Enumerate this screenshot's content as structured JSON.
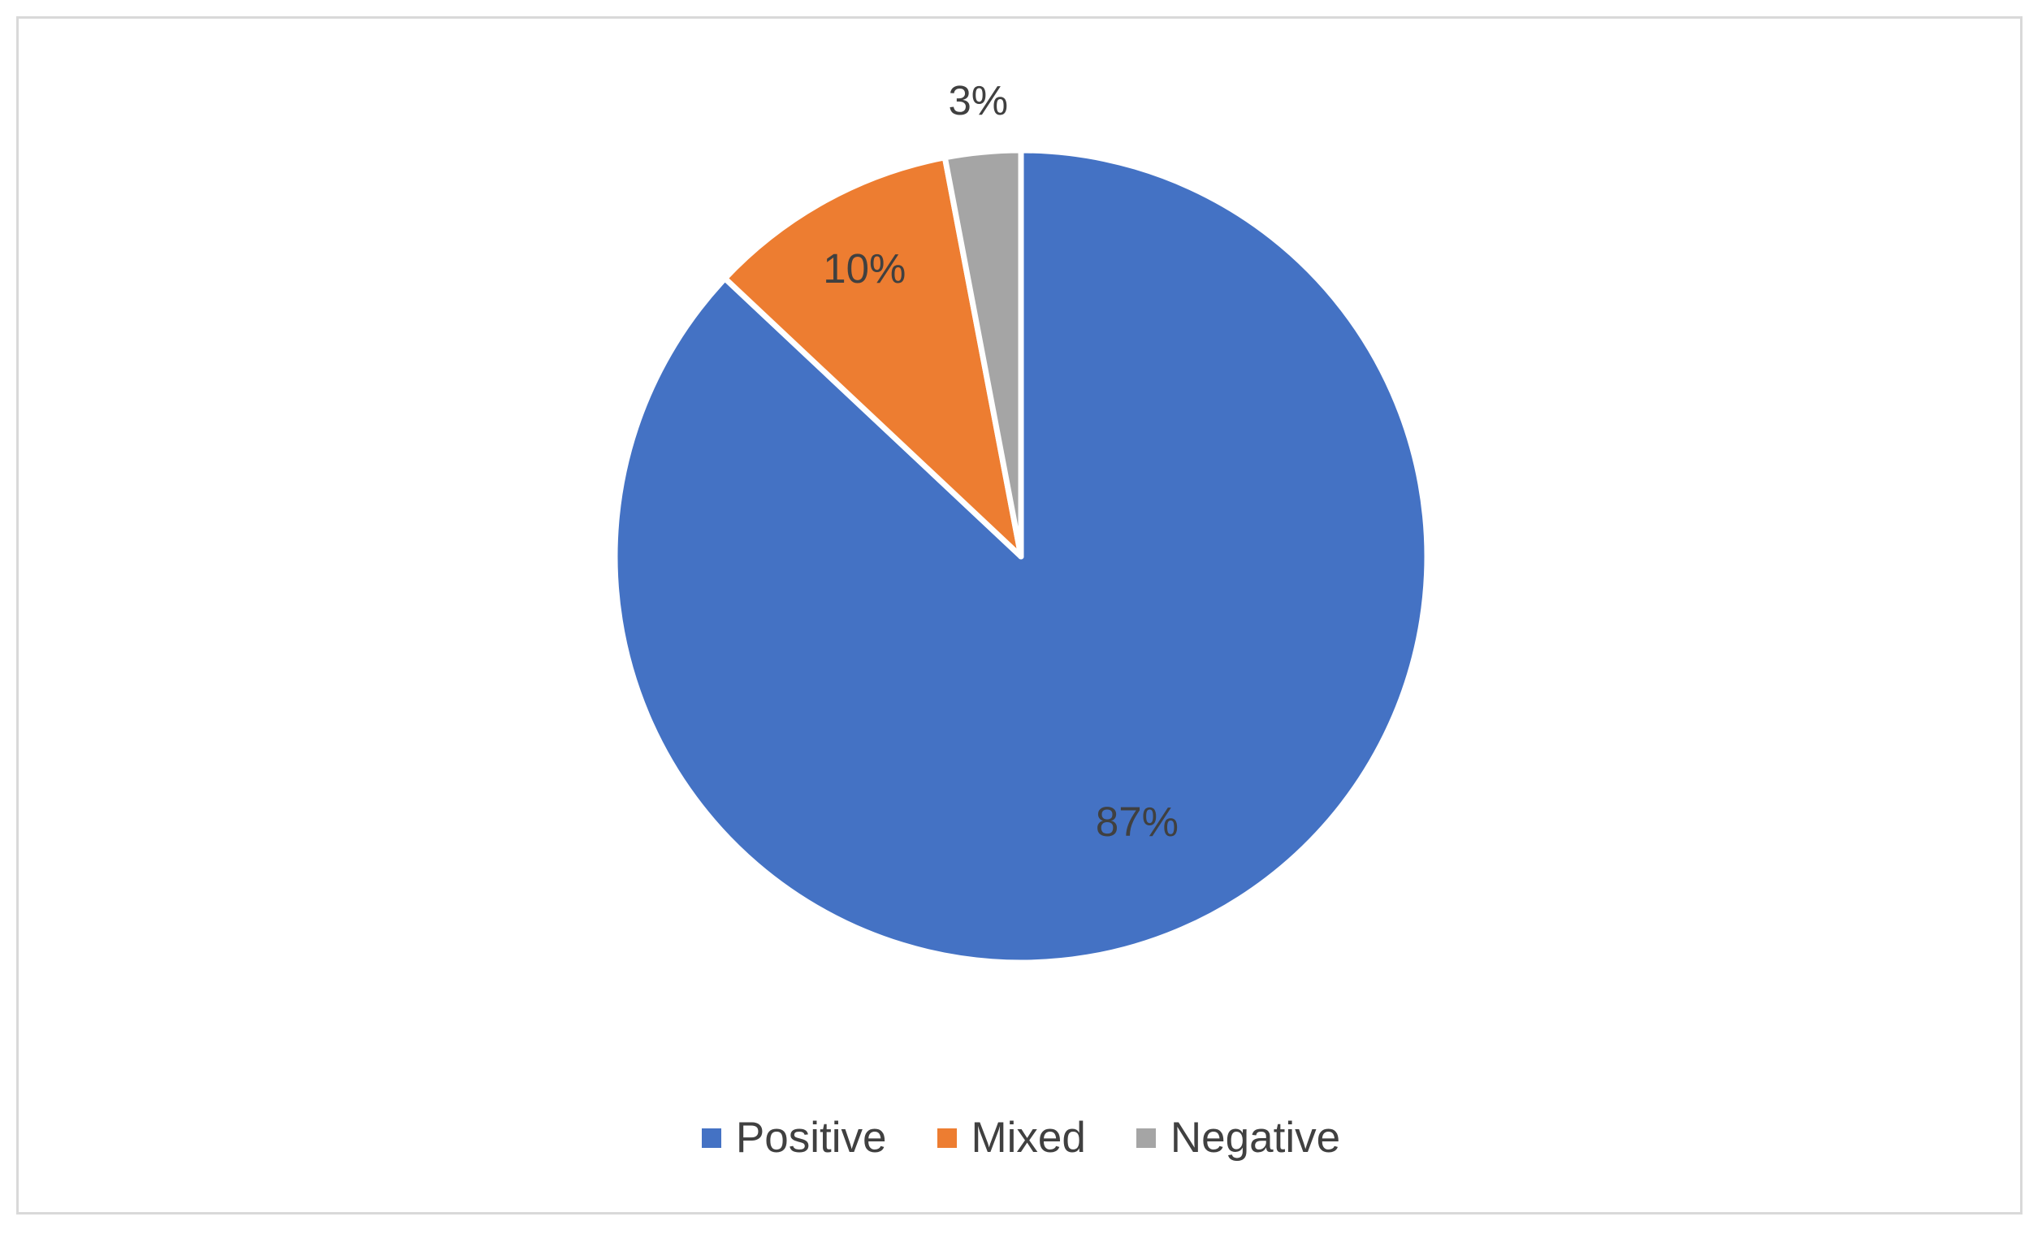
{
  "chart_data": {
    "type": "pie",
    "title": "",
    "categories": [
      "Positive",
      "Mixed",
      "Negative"
    ],
    "values": [
      87,
      10,
      3
    ],
    "data_labels": [
      "87%",
      "10%",
      "3%"
    ],
    "colors": [
      "#4472c4",
      "#ed7d31",
      "#a5a5a5"
    ],
    "start_angle": "12 o'clock",
    "direction": "clockwise",
    "legend_position": "bottom"
  }
}
